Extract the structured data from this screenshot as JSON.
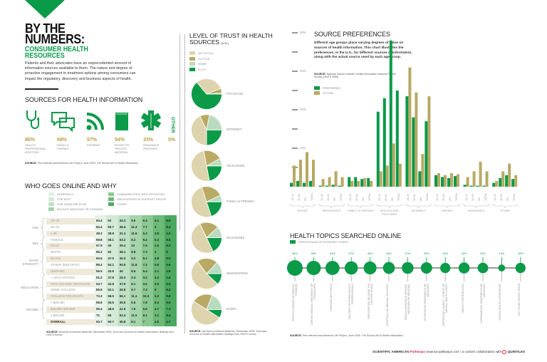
{
  "header": {
    "title": "BY THE NUMBERS:",
    "subtitle_line1": "CONSUMER HEALTH",
    "subtitle_line2": "RESOURCES",
    "intro": "Patients and their advocates have an unprecedented amount of information sources available to them. The nature and degree of proactive engagement in treatment options among consumers can impact the regulatory, discovery and business aspects of health."
  },
  "sources": {
    "title": "SOURCES FOR HEALTH INFORMATION",
    "items": [
      {
        "pct": "86%",
        "label": "HEALTH PROFESSIONAL (DOCTOR)",
        "icon": "stethoscope-icon"
      },
      {
        "pct": "68%",
        "label": "FAMILY & FRIENDS",
        "icon": "chat-bubbles-icon"
      },
      {
        "pct": "57%",
        "label": "INTERNET",
        "icon": "rss-icon"
      },
      {
        "pct": "54%",
        "label": "BOOKS OR PRINTED MATERIAL",
        "icon": "book-icon"
      },
      {
        "pct": "33%",
        "label": "INSURANCE PROVIDER",
        "icon": "star-of-life-icon"
      },
      {
        "pct": "5%",
        "label": "OTHER"
      }
    ],
    "source_label": "SOURCE:",
    "source": "Pew Internet and American Life Project, June 2009, The Social Life of Health Information"
  },
  "online": {
    "title": "WHO GOES ONLINE AND WHY",
    "legend": [
      "GENERALLY",
      "FOR SELF",
      "FOR SOMEONE ELSE",
      "BOUGHT MEDICINE OR VITAMINS",
      "COMMUNICATED WITH PHYSICIAN",
      "PARTICIPATED IN SUPPORT GROUP",
      "OTHER"
    ],
    "column_colors": [
      "#e6f2e7",
      "#d3eAd6",
      "#bfe0c3",
      "#a6d4ac",
      "#8ac891",
      "#6cb978",
      "#4aa95f"
    ],
    "groups": [
      {
        "id": "age",
        "label": "AGE"
      },
      {
        "id": "sex",
        "label": "SEX"
      },
      {
        "id": "race",
        "label": "RACE/ ETHNICITY"
      },
      {
        "id": "edu",
        "label": "EDUCATION"
      },
      {
        "id": "inc",
        "label": "INCOME"
      }
    ],
    "rows": [
      {
        "group": "age",
        "label": "18–34",
        "values": [
          "84.4",
          "52",
          "44.3",
          "5.5",
          "6.4",
          "4.1",
          "8.8"
        ]
      },
      {
        "group": "age",
        "label": "35–64",
        "values": [
          "84.4",
          "50.7",
          "48.4",
          "11.3",
          "7.7",
          "4",
          "8.4"
        ]
      },
      {
        "group": "age",
        "label": "≥ 65",
        "values": [
          "48.2",
          "38.8",
          "31.3",
          "11.6",
          "5.2",
          "2.8",
          "3.5"
        ]
      },
      {
        "group": "sex",
        "label": "FEMALE",
        "values": [
          "69.8",
          "58.1",
          "52.2",
          "8.2",
          "6.4",
          "5.3",
          "8.8"
        ]
      },
      {
        "group": "sex",
        "label": "MALE",
        "values": [
          "57.5",
          "40",
          "39.4",
          "10",
          "7.6",
          "2.6",
          "6.2"
        ]
      },
      {
        "group": "race",
        "label": "WHITE",
        "values": [
          "65.2",
          "52",
          "48.1",
          "8.8",
          "7.3",
          "4",
          "8"
        ]
      },
      {
        "group": "race",
        "label": "BLACK",
        "values": [
          "60.5",
          "47.5",
          "36.3",
          "5.2",
          "6.1",
          "4.8",
          "5.5"
        ]
      },
      {
        "group": "race",
        "label": "OTHER (MULTIPLE)",
        "values": [
          "89.4",
          "54.1",
          "50.5",
          "11.8",
          "7.2",
          "5.8",
          "9.6"
        ]
      },
      {
        "group": "race",
        "label": "HISPANIC",
        "values": [
          "56.5",
          "42.8",
          "40",
          "6.6",
          "6.4",
          "2.1",
          "4.8"
        ]
      },
      {
        "group": "edu",
        "label": "< HIGH SCHOOL",
        "values": [
          "51.2",
          "37.8",
          "28.3",
          "2.4",
          "3.2",
          "4.2",
          "2.8"
        ]
      },
      {
        "group": "edu",
        "label": "HIGH SCHOOL GRADUATE",
        "values": [
          "53.7",
          "42.8",
          "37.9",
          "8.1",
          "3.5",
          "3.5",
          "5.5"
        ]
      },
      {
        "group": "edu",
        "label": "SOME COLLEGE",
        "values": [
          "85.5",
          "52.1",
          "46.8",
          "9.7",
          "7.3",
          "5",
          "8.2"
        ]
      },
      {
        "group": "edu",
        "label": "COLLEGE GRADUATE",
        "values": [
          "73.3",
          "58.5",
          "56.1",
          "11.1",
          "10.3",
          "3.3",
          "9.8"
        ]
      },
      {
        "group": "inc",
        "label": "< $25,000",
        "values": [
          "56.6",
          "45.5",
          "39.5",
          "5.6",
          "7.8",
          "6.2",
          "6.9"
        ]
      },
      {
        "group": "inc",
        "label": "$25,000–$49,999",
        "values": [
          "59.4",
          "48.6",
          "41.9",
          "7.9",
          "5.8",
          "4.7",
          "7.2"
        ]
      },
      {
        "group": "inc",
        "label": "≥ $50,000",
        "values": [
          "71",
          "55",
          "52.4",
          "11.5",
          "8.1",
          "3.1",
          "8.4"
        ]
      },
      {
        "group": "",
        "label": "OVERALL",
        "values": [
          "63.7",
          "50.7",
          "45.8",
          "8.1",
          "7",
          "3.8",
          "4.7"
        ]
      }
    ],
    "source_label": "SOURCE:",
    "source": "Archives of Internal Medicine, December 2005: Trust and Sources of Health Information; findings from HINTS survey"
  },
  "chart_data": [
    {
      "type": "pie",
      "title": "LEVEL OF TRUST IN HEALTH SOURCES",
      "title_suffix": "(U.S.)",
      "legend": [
        "NOT AT ALL",
        "A LITTLE",
        "SOME",
        "A LOT"
      ],
      "colors": {
        "NOT AT ALL": "#ddd3ad",
        "A LITTLE": "#b8a964",
        "SOME": "#b9dcc0",
        "A LOT": "#0a9a48"
      },
      "pies": [
        {
          "label": "PHYSICIAN",
          "values": {
            "A LOT": 64,
            "SOME": 1,
            "A LITTLE": 5,
            "NOT AT ALL": 30
          }
        },
        {
          "label": "INTERNET",
          "values": {
            "A LOT": 25,
            "SOME": 22,
            "A LITTLE": 10,
            "NOT AT ALL": 43
          }
        },
        {
          "label": "TELEVISION",
          "values": {
            "A LOT": 22,
            "SOME": 8,
            "A LITTLE": 20,
            "NOT AT ALL": 50
          }
        },
        {
          "label": "FAMILY & FRIENDS",
          "values": {
            "A LOT": 20,
            "SOME": 7,
            "A LITTLE": 23,
            "NOT AT ALL": 50
          }
        },
        {
          "label": "MAGAZINES",
          "values": {
            "A LOT": 18,
            "SOME": 12,
            "A LITTLE": 20,
            "NOT AT ALL": 50
          }
        },
        {
          "label": "NEWSPAPERS",
          "values": {
            "A LOT": 12,
            "SOME": 13,
            "A LITTLE": 22,
            "NOT AT ALL": 53
          }
        },
        {
          "label": "RADIO",
          "values": {
            "A LOT": 9,
            "SOME": 19,
            "A LITTLE": 22,
            "NOT AT ALL": 50
          }
        }
      ],
      "source_label": "SOURCE:",
      "source": "Archives of Internal Medicine, December 2005: Trust and Sources of Health Information; findings from HINTS survey"
    },
    {
      "type": "bar",
      "title": "SOURCE PREFERENCES",
      "description": "Different age groups place varying degrees of value on sources of health information. This chart illustrates the preferences, in the U.S., for different sources of information, along with the actual source used by each age group.",
      "source_label": "SOURCE:",
      "source": "National Cancer Institute, Health Information National Trends Survey (HINTS 2005)",
      "ylim": [
        0,
        80
      ],
      "yticks": [
        "20%",
        "40%",
        "60%",
        "80%"
      ],
      "ytick_values": [
        20,
        40,
        60,
        80
      ],
      "subcategories": [
        "18–34",
        "35–64",
        "65+",
        "TOTAL"
      ],
      "colors": {
        "PREFERRED": "#0a9a48",
        "ACTUAL": "#b8a964"
      },
      "series_names": [
        "PREFERRED",
        "ACTUAL"
      ],
      "groups": [
        {
          "label": "BOOKS",
          "preferred": [
            2,
            3,
            2,
            3
          ],
          "actual": [
            11,
            14,
            18,
            14
          ]
        },
        {
          "label": "BROCHURES",
          "preferred": [
            0.5,
            0.5,
            1,
            0.5
          ],
          "actual": [
            4,
            5,
            8,
            5
          ]
        },
        {
          "label": "FAMILY & FRIENDS",
          "preferred": [
            5,
            5,
            4,
            4.5
          ],
          "actual": [
            3,
            3,
            4.5,
            3
          ]
        },
        {
          "label": "HEALTHCARE PROVIDER",
          "preferred": [
            39,
            46,
            76,
            50
          ],
          "actual": [
            8,
            11,
            22.5,
            12
          ]
        },
        {
          "label": "INTERNET",
          "preferred": [
            47,
            36,
            8,
            34
          ],
          "actual": [
            62,
            49,
            17,
            47
          ]
        },
        {
          "label": "LIBRARY",
          "preferred": [
            6,
            5,
            4.5,
            5.5
          ],
          "actual": [
            7,
            6,
            7,
            6.5
          ]
        },
        {
          "label": "MAGAZINES",
          "preferred": [
            1,
            0.5,
            0.5,
            0.5
          ],
          "actual": [
            5,
            8,
            13,
            8
          ]
        },
        {
          "label": "OTHER",
          "preferred": [
            2,
            4.5,
            6,
            4
          ],
          "actual": [
            3,
            8,
            12,
            6
          ]
        }
      ]
    },
    {
      "type": "scatter",
      "title": "HEALTH TOPICS SEARCHED ONLINE",
      "legend": "PERCENTAGE OF INTERNET USERS",
      "topics": [
        {
          "label": "SPECIFIC DISEASE OR MEDICAL PROBLEM",
          "value": 66
        },
        {
          "label": "CERTAIN MEDICAL TREATMENT OR PROCEDURE",
          "value": 55
        },
        {
          "label": "EXERCISE OR FITNESS",
          "value": 53
        },
        {
          "label": "DOCTORS OR OTHER HEALTH PROFESSIONALS",
          "value": 47
        },
        {
          "label": "PRESCRIPTION OR OVER THE COUNTER DRUGS",
          "value": 45
        },
        {
          "label": "HOSPITALS OR MEDICAL FACILITIES",
          "value": 38
        },
        {
          "label": "HEALTH INSURANCE (PRIVATE, MEDICARE OR MEDICAID)",
          "value": 37
        },
        {
          "label": "ALTERNATIVE TREATMENTS OR MEDICINES",
          "value": 35
        },
        {
          "label": "DEPRESSION, ANXIETY, STRESS OR MENTAL HEALTH ISSUES",
          "value": 28
        },
        {
          "label": "WEIGHT CONTROL/LOSS",
          "value": 33
        },
        {
          "label": "EXPERIMENTAL TREATMENTS OR MEDICINES",
          "value": 30
        },
        {
          "label": "DENTAL HEALTH INFORMATION",
          "value": 13
        },
        {
          "label": "ANY OTHER HEALTH ISSUE",
          "value": 28
        }
      ],
      "source_label": "SOURCE:",
      "source": "Pew Internet and American Life Project, June 2009, The Social Life of Health Information"
    }
  ],
  "footer": {
    "brand": "SCIENTIFIC AMERICAN",
    "brand2": "Pathways",
    "text": "www.sa-pathways.com / a custom collaboration with",
    "partner": "QUINTILES"
  }
}
